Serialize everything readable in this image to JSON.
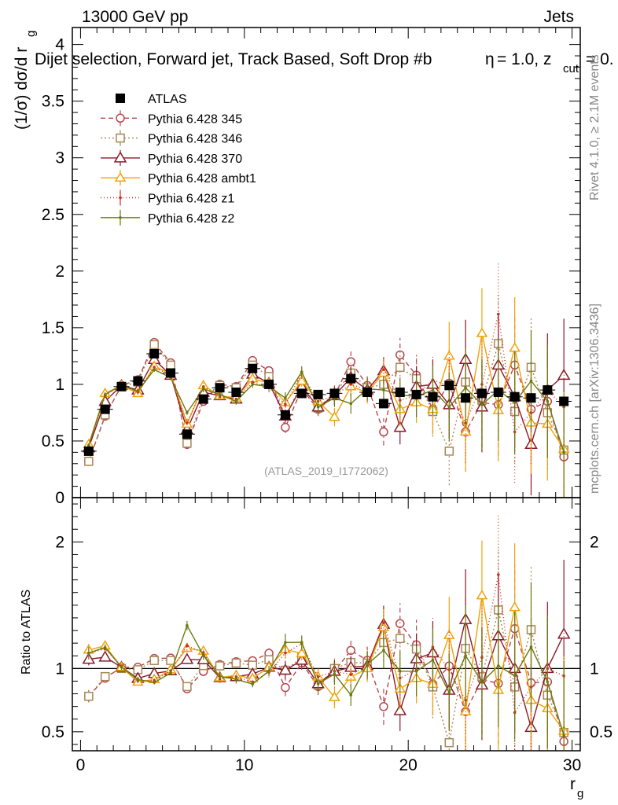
{
  "header": {
    "left": "13000 GeV pp",
    "right": "Jets"
  },
  "chart_data": {
    "type": "line",
    "title": "Dijet selection, Forward jet, Track Based, Soft Drop #b",
    "title_suffix": "= 1.0, z",
    "title_sub": "cut",
    "title_tail": "= 0.",
    "title_eta": "η",
    "ylabel_main": "(1/σ) dσ/d r",
    "ylabel_main_sub": "g",
    "ylabel_ratio": "Ratio to ATLAS",
    "xlabel": "r",
    "xlabel_sub": "g",
    "watermark": "(ATLAS_2019_I1772062)",
    "side_right_top": "Rivet 4.1.0, ≥ 2.1M events",
    "side_right_bottom": "mcplots.cern.ch [arXiv:1306.3436]",
    "xlim": [
      -0.5,
      30.5
    ],
    "ylim_main": [
      0,
      4.15
    ],
    "ylim_ratio": [
      0.35,
      2.35
    ],
    "xticks": [
      0,
      10,
      20,
      30
    ],
    "xtick_labels": [
      "0",
      "10",
      "20",
      "30"
    ],
    "yticks_main": [
      0,
      0.5,
      1,
      1.5,
      2,
      2.5,
      3,
      3.5,
      4
    ],
    "ytick_labels_main": [
      "0",
      "0.5",
      "1",
      "1.5",
      "2",
      "2.5",
      "3",
      "3.5",
      "4"
    ],
    "yticks_ratio": [
      0.5,
      1,
      2
    ],
    "ytick_labels_ratio_left": [
      "0.5",
      "1",
      "2"
    ],
    "ytick_labels_ratio_right": [
      "0.5",
      "1",
      "2"
    ],
    "x": [
      0.5,
      1.5,
      2.5,
      3.5,
      4.5,
      5.5,
      6.5,
      7.5,
      8.5,
      9.5,
      10.5,
      11.5,
      12.5,
      13.5,
      14.5,
      15.5,
      16.5,
      17.5,
      18.5,
      19.5,
      20.5,
      21.5,
      22.5,
      23.5,
      24.5,
      25.5,
      26.5,
      27.5,
      28.5,
      29.5
    ],
    "data": {
      "name": "ATLAS",
      "values": [
        0.41,
        0.78,
        0.98,
        1.03,
        1.27,
        1.1,
        0.56,
        0.87,
        0.97,
        0.93,
        1.14,
        1.0,
        0.73,
        0.92,
        0.91,
        0.92,
        1.05,
        0.93,
        0.83,
        0.93,
        0.91,
        0.89,
        0.99,
        0.88,
        0.92,
        0.93,
        0.89,
        0.88,
        0.95,
        0.85
      ]
    },
    "series": [
      {
        "name": "Pythia 6.428 345",
        "color": "#b8454f",
        "marker": "circle",
        "dash": "6,4",
        "values": [
          0.32,
          0.72,
          0.99,
          1.04,
          1.37,
          1.19,
          0.47,
          0.85,
          1.0,
          0.98,
          1.21,
          1.12,
          0.62,
          0.96,
          0.78,
          0.9,
          1.2,
          0.99,
          0.58,
          1.26,
          1.08,
          0.78,
          1.01,
          0.58,
          0.84,
          0.82,
          1.17,
          0.78,
          0.85,
          0.36
        ],
        "errors": [
          0.02,
          0.02,
          0.02,
          0.02,
          0.02,
          0.02,
          0.02,
          0.03,
          0.03,
          0.03,
          0.03,
          0.04,
          0.05,
          0.05,
          0.06,
          0.08,
          0.09,
          0.1,
          0.12,
          0.15,
          0.18,
          0.22,
          0.3,
          0.35,
          0.4,
          0.45,
          0.45,
          0.45,
          0.5,
          0.5
        ]
      },
      {
        "name": "Pythia 6.428 346",
        "color": "#a88654",
        "marker": "square",
        "dash": "2,3",
        "values": [
          0.32,
          0.73,
          0.98,
          1.02,
          1.35,
          1.17,
          0.48,
          0.89,
          0.99,
          0.97,
          1.17,
          1.07,
          0.72,
          1.0,
          0.79,
          0.92,
          1.1,
          0.97,
          1.0,
          1.15,
          1.05,
          0.76,
          0.41,
          1.02,
          0.86,
          1.36,
          0.76,
          1.15,
          0.75,
          0.42
        ],
        "errors": [
          0.02,
          0.02,
          0.02,
          0.02,
          0.02,
          0.02,
          0.02,
          0.03,
          0.03,
          0.03,
          0.03,
          0.04,
          0.05,
          0.05,
          0.06,
          0.08,
          0.09,
          0.1,
          0.12,
          0.15,
          0.18,
          0.22,
          0.3,
          0.35,
          0.4,
          0.45,
          0.45,
          0.45,
          0.5,
          0.5
        ]
      },
      {
        "name": "Pythia 6.428 370",
        "color": "#8b1a2b",
        "marker": "triangle",
        "dash": "",
        "values": [
          0.44,
          0.85,
          0.99,
          0.95,
          1.22,
          1.08,
          0.6,
          0.93,
          0.9,
          0.87,
          1.09,
          1.01,
          0.72,
          0.98,
          0.8,
          0.9,
          1.06,
          0.95,
          1.12,
          0.62,
          0.98,
          1.0,
          0.82,
          1.22,
          0.8,
          1.17,
          0.89,
          0.47,
          0.95,
          1.08
        ],
        "errors": [
          0.02,
          0.02,
          0.02,
          0.02,
          0.02,
          0.02,
          0.02,
          0.03,
          0.03,
          0.03,
          0.03,
          0.04,
          0.05,
          0.05,
          0.06,
          0.08,
          0.09,
          0.1,
          0.12,
          0.15,
          0.18,
          0.22,
          0.3,
          0.35,
          0.4,
          0.45,
          0.45,
          0.45,
          0.5,
          0.5
        ]
      },
      {
        "name": "Pythia 6.428 ambt1",
        "color": "#f0a20a",
        "marker": "triangle-small",
        "dash": "",
        "values": [
          0.47,
          0.92,
          0.99,
          0.92,
          1.16,
          1.09,
          0.65,
          0.99,
          0.9,
          0.88,
          1.05,
          1.01,
          0.84,
          1.03,
          0.85,
          0.71,
          0.98,
          0.93,
          1.1,
          0.78,
          0.84,
          0.78,
          1.25,
          0.58,
          1.45,
          0.77,
          1.32,
          0.66,
          0.65,
          0.43
        ],
        "errors": [
          0.02,
          0.02,
          0.02,
          0.02,
          0.02,
          0.02,
          0.02,
          0.03,
          0.03,
          0.03,
          0.03,
          0.04,
          0.05,
          0.05,
          0.06,
          0.08,
          0.09,
          0.1,
          0.12,
          0.15,
          0.18,
          0.22,
          0.3,
          0.35,
          0.4,
          0.45,
          0.45,
          0.45,
          0.5,
          0.5
        ]
      },
      {
        "name": "Pythia 6.428 z1",
        "color": "#d42a1e",
        "marker": "dot",
        "dash": "1,3",
        "values": [
          0.46,
          0.9,
          1.0,
          0.93,
          1.15,
          1.08,
          0.66,
          0.98,
          0.89,
          0.87,
          1.02,
          0.97,
          0.82,
          1.1,
          0.85,
          0.9,
          1.0,
          0.95,
          1.13,
          0.86,
          0.9,
          1.04,
          0.98,
          0.66,
          1.0,
          1.62,
          0.58,
          0.75,
          0.95,
          0.8
        ],
        "errors": [
          0.02,
          0.02,
          0.02,
          0.02,
          0.02,
          0.02,
          0.02,
          0.03,
          0.03,
          0.03,
          0.03,
          0.04,
          0.05,
          0.05,
          0.06,
          0.08,
          0.09,
          0.1,
          0.12,
          0.15,
          0.18,
          0.22,
          0.3,
          0.35,
          0.4,
          0.45,
          0.45,
          0.45,
          0.5,
          0.5
        ]
      },
      {
        "name": "Pythia 6.428 z2",
        "color": "#6b7a0e",
        "marker": "dot",
        "dash": "",
        "values": [
          0.46,
          0.91,
          0.99,
          0.94,
          1.13,
          1.06,
          0.75,
          0.96,
          0.91,
          0.85,
          1.0,
          0.98,
          0.88,
          1.11,
          0.8,
          0.88,
          0.83,
          0.96,
          0.95,
          0.91,
          0.89,
          0.95,
          0.8,
          0.97,
          0.82,
          0.95,
          0.84,
          1.03,
          0.85,
          0.4
        ],
        "errors": [
          0.02,
          0.02,
          0.02,
          0.02,
          0.02,
          0.02,
          0.02,
          0.03,
          0.03,
          0.03,
          0.03,
          0.04,
          0.05,
          0.05,
          0.06,
          0.08,
          0.09,
          0.1,
          0.12,
          0.15,
          0.18,
          0.22,
          0.3,
          0.35,
          0.4,
          0.45,
          0.45,
          0.45,
          0.5,
          0.5
        ]
      }
    ],
    "legend": "top-left",
    "grid": false
  }
}
